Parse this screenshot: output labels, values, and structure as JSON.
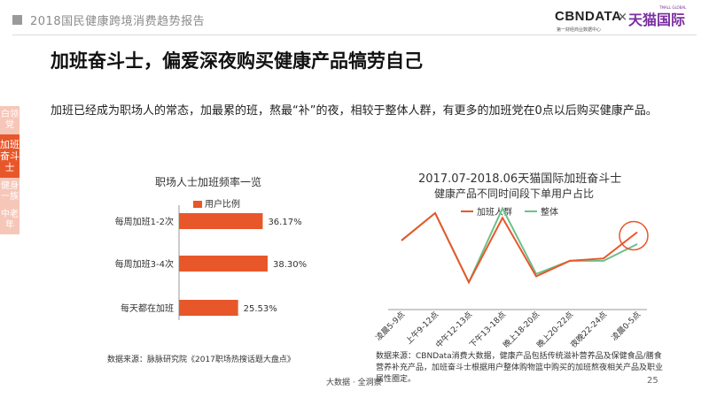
{
  "header": {
    "report_title": "2018国民健康跨境消费趋势报告",
    "logo_cbn": "CBNDATA",
    "logo_cbn_sub": "第一财经商业数据中心",
    "logo_sep": "×",
    "logo_tmall": "天猫国际",
    "logo_tmall_sub": "TMALL GLOBAL"
  },
  "main": {
    "title": "加班奋斗士，偏爱深夜购买健康产品犒劳自己",
    "body": "加班已经成为职场人的常态，加最累的班，熬最“补”的夜，相较于整体人群，有更多的加班党在0点以后购买健康产品。"
  },
  "side_tabs": [
    {
      "label": "白领党",
      "active": false
    },
    {
      "label": "加班奋斗士",
      "active": true
    },
    {
      "label": "健身一族",
      "active": false
    },
    {
      "label": "中老年",
      "active": false
    }
  ],
  "colors": {
    "accent": "#e8572a",
    "green": "#6cc08b",
    "tab_inactive": "#f6c6b8"
  },
  "chart_data": [
    {
      "type": "bar",
      "orientation": "horizontal",
      "title": "职场人士加班频率一览",
      "legend": [
        "用户比例"
      ],
      "categories": [
        "每周加班1-2次",
        "每周加班3-4次",
        "每天都在加班"
      ],
      "values": [
        36.17,
        38.3,
        25.53
      ],
      "value_labels": [
        "36.17%",
        "38.30%",
        "25.53%"
      ],
      "unit": "%",
      "color": "#e8572a"
    },
    {
      "type": "line",
      "title": "2017.07-2018.06天猫国际加班奋斗士",
      "subtitle": "健康产品不同时间段下单用户占比",
      "categories": [
        "凌晨5-9点",
        "上午9-12点",
        "中午12-13点",
        "下午13-18点",
        "晚上18-20点",
        "晚上20-22点",
        "夜晚22-24点",
        "凌晨0-5点"
      ],
      "series": [
        {
          "name": "加班人群",
          "color": "#e8572a",
          "values": [
            0.215,
            0.33,
            0.04,
            0.31,
            0.065,
            0.13,
            0.14,
            0.25
          ]
        },
        {
          "name": "整体",
          "color": "#6cc08b",
          "values": [
            0.215,
            0.33,
            0.04,
            0.35,
            0.075,
            0.13,
            0.13,
            0.2
          ]
        }
      ],
      "highlight": "凌晨0-5点"
    }
  ],
  "sources": {
    "left": "数据来源：脉脉研究院《2017职场热搜话题大盘点》",
    "right": "数据来源：CBNData消费大数据，健康产品包括传统滋补营养品及保健食品/膳食营养补充产品，加班奋斗士根据用户整体购物篮中购买的加班熬夜相关产品及职业属性圈定。"
  },
  "footer": {
    "text": "大数据 · 全洞察",
    "page": "25"
  }
}
